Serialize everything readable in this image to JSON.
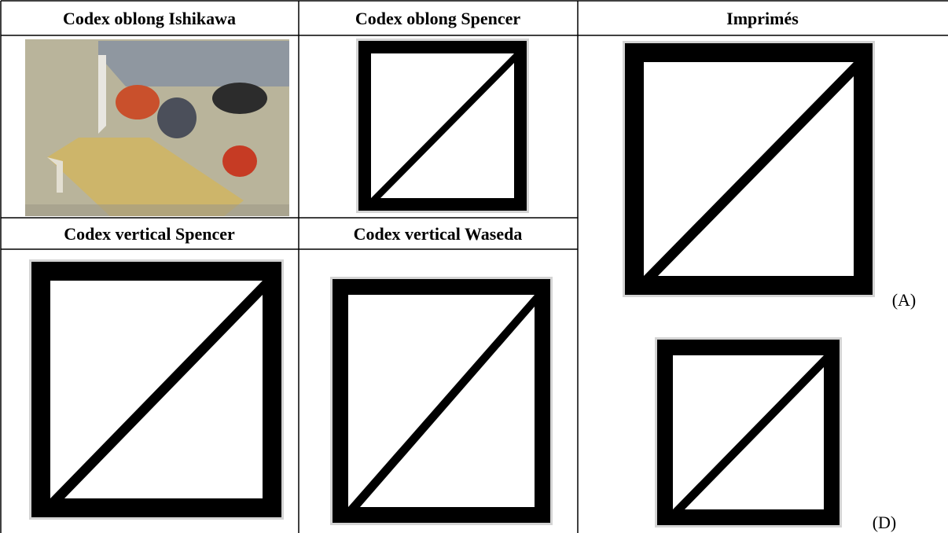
{
  "table": {
    "header_row": [
      "Codex oblong Ishikawa",
      "Codex oblong Spencer",
      "Imprimés"
    ],
    "second_header_row": [
      "Codex vertical Spencer",
      "Codex vertical Waseda"
    ]
  },
  "figure_labels": [
    "(A)",
    "(D)"
  ]
}
